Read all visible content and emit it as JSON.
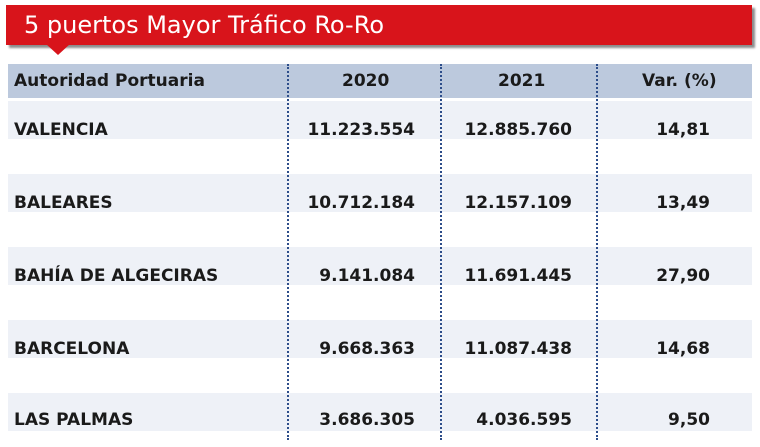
{
  "title": "5 puertos Mayor Tráfico Ro-Ro",
  "colors": {
    "banner": "#d8141b",
    "header_bg": "#bcc9dd",
    "row_band": "#eef1f7",
    "divider": "#2d4d8a"
  },
  "table": {
    "headers": [
      "Autoridad Portuaria",
      "2020",
      "2021",
      "Var. (%)"
    ],
    "rows": [
      {
        "port": "VALENCIA",
        "y2020": "11.223.554",
        "y2021": "12.885.760",
        "var": "14,81"
      },
      {
        "port": "BALEARES",
        "y2020": "10.712.184",
        "y2021": "12.157.109",
        "var": "13,49"
      },
      {
        "port": "BAHÍA DE ALGECIRAS",
        "y2020": "9.141.084",
        "y2021": "11.691.445",
        "var": "27,90"
      },
      {
        "port": "BARCELONA",
        "y2020": "9.668.363",
        "y2021": "11.087.438",
        "var": "14,68"
      },
      {
        "port": "LAS PALMAS",
        "y2020": "3.686.305",
        "y2021": "4.036.595",
        "var": "9,50"
      }
    ]
  }
}
